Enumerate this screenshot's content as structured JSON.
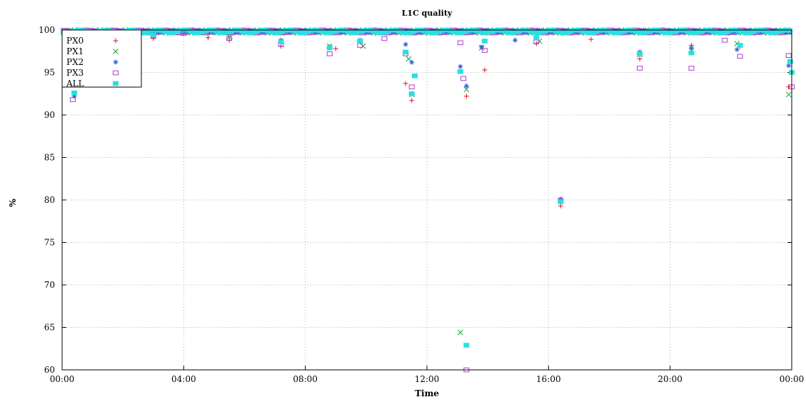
{
  "chart_data": {
    "type": "scatter",
    "title": "L1C quality",
    "xlabel": "Time",
    "ylabel": "%",
    "xlim": [
      0,
      24
    ],
    "ylim": [
      60,
      100
    ],
    "x_ticks": [
      0,
      4,
      8,
      12,
      16,
      20,
      24
    ],
    "x_tick_labels": [
      "00:00",
      "04:00",
      "08:00",
      "12:00",
      "16:00",
      "20:00",
      "00:00"
    ],
    "y_ticks": [
      60,
      65,
      70,
      75,
      80,
      85,
      90,
      95,
      100
    ],
    "y_tick_labels": [
      "60",
      "65",
      "70",
      "75",
      "80",
      "85",
      "90",
      "95",
      "100"
    ],
    "grid": true,
    "legend_position": "top-left",
    "x_unit_note": "hours",
    "series": [
      {
        "name": "PX0",
        "marker": "plus",
        "color": "#e8101a",
        "x": [
          0.2,
          0.35,
          0.5,
          1.3,
          1.8,
          2.0,
          3.0,
          4.8,
          5.5,
          7.2,
          9.0,
          9.8,
          11.3,
          11.5,
          13.3,
          13.9,
          15.6,
          16.4,
          17.4,
          19.0,
          20.7,
          22.3,
          23.9
        ],
        "y": [
          94.3,
          97.5,
          99.1,
          98.7,
          98.3,
          96.6,
          99.0,
          99.1,
          98.8,
          98.1,
          97.8,
          98.6,
          93.7,
          91.7,
          92.2,
          95.3,
          98.4,
          79.3,
          98.9,
          96.6,
          98.2,
          98.1,
          93.3
        ]
      },
      {
        "name": "PX1",
        "marker": "cross",
        "color": "#1fa22f",
        "x": [
          0.15,
          0.4,
          1.2,
          1.7,
          1.9,
          3.0,
          5.5,
          7.2,
          8.8,
          9.9,
          11.4,
          11.5,
          13.1,
          13.3,
          13.8,
          15.7,
          16.4,
          19.0,
          20.7,
          22.2,
          23.9
        ],
        "y": [
          95.2,
          97.7,
          99.3,
          97.7,
          97.6,
          99.4,
          99.2,
          98.6,
          98.1,
          98.1,
          96.6,
          92.4,
          64.4,
          93.0,
          97.9,
          98.7,
          79.9,
          97.1,
          97.6,
          98.4,
          92.4
        ]
      },
      {
        "name": "PX2",
        "marker": "star",
        "color": "#2a5bd6",
        "x": [
          0.2,
          0.4,
          0.5,
          1.2,
          1.8,
          2.0,
          3.0,
          7.2,
          8.8,
          9.8,
          11.3,
          11.5,
          13.1,
          13.3,
          13.8,
          14.9,
          16.4,
          19.0,
          20.7,
          22.2,
          23.9
        ],
        "y": [
          95.6,
          92.2,
          97.8,
          99.6,
          96.4,
          94.4,
          99.5,
          98.8,
          98.0,
          98.8,
          98.3,
          96.2,
          95.7,
          93.4,
          98.0,
          98.8,
          80.1,
          97.4,
          97.9,
          97.7,
          95.8
        ]
      },
      {
        "name": "PX3",
        "marker": "square",
        "color": "#b03ad0",
        "x": [
          0.2,
          0.35,
          0.5,
          1.2,
          1.8,
          2.0,
          3.0,
          4.0,
          5.5,
          7.2,
          8.8,
          9.8,
          10.6,
          11.3,
          11.5,
          13.1,
          13.2,
          13.3,
          13.9,
          15.6,
          16.4,
          19.0,
          20.7,
          21.8,
          22.3,
          23.9,
          24.0
        ],
        "y": [
          95.5,
          91.8,
          97.9,
          99.2,
          95.2,
          94.9,
          99.3,
          99.6,
          99.0,
          98.3,
          97.2,
          98.2,
          99.0,
          97.2,
          93.3,
          98.5,
          94.3,
          60.0,
          97.6,
          98.6,
          79.9,
          95.5,
          95.5,
          98.8,
          96.9,
          97.0,
          93.3
        ]
      },
      {
        "name": "ALL",
        "marker": "filled-square",
        "color": "#28e0e0",
        "x": [
          0.1,
          0.25,
          0.4,
          0.5,
          1.2,
          1.9,
          2.0,
          3.0,
          7.2,
          8.8,
          9.8,
          11.3,
          11.5,
          11.6,
          13.1,
          13.3,
          13.9,
          15.6,
          16.4,
          19.0,
          20.7,
          22.3,
          23.95,
          24.0
        ],
        "y": [
          99.3,
          94.8,
          92.6,
          96.2,
          99.3,
          97.2,
          95.1,
          99.4,
          98.6,
          97.9,
          98.7,
          97.4,
          92.5,
          94.6,
          95.1,
          62.9,
          98.7,
          99.1,
          79.8,
          97.2,
          97.3,
          98.2,
          96.3,
          95.0
        ]
      }
    ]
  }
}
